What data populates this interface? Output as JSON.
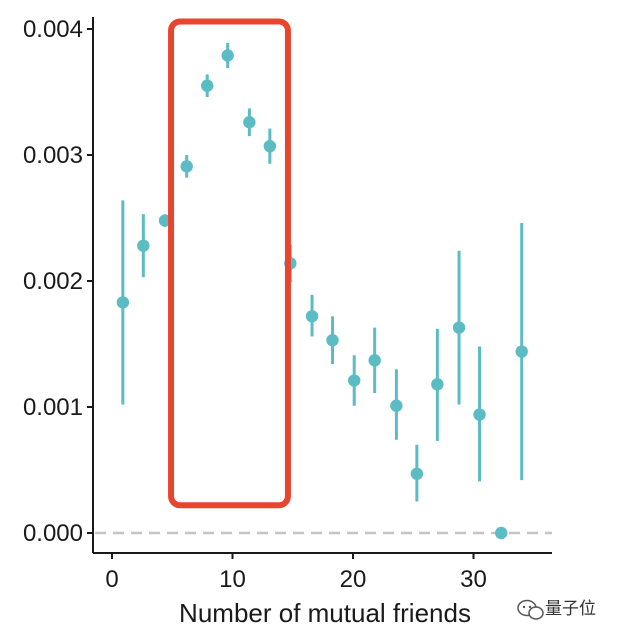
{
  "chart_data": {
    "type": "scatter",
    "xlabel": "Number of mutual friends",
    "ylabel": "",
    "xlim": [
      -1.5,
      36.5
    ],
    "ylim": [
      -1e-05,
      0.00406
    ],
    "x_ticks": [
      0,
      10,
      20,
      30
    ],
    "y_ticks": [
      0.0,
      0.001,
      0.002,
      0.003,
      0.004
    ],
    "y_tick_labels": [
      "0.000",
      "0.001",
      "0.002",
      "0.003",
      "0.004"
    ],
    "reference_line": {
      "y": 0,
      "style": "dashed",
      "color": "#c4c4c4"
    },
    "series": [
      {
        "points": [
          {
            "x": 0.9,
            "y": 0.00183,
            "low": 0.00102,
            "high": 0.00264
          },
          {
            "x": 2.6,
            "y": 0.00228,
            "low": 0.00203,
            "high": 0.00253
          },
          {
            "x": 4.4,
            "y": 0.00248,
            "low": 0.00243,
            "high": 0.00253
          },
          {
            "x": 6.2,
            "y": 0.00291,
            "low": 0.00282,
            "high": 0.003
          },
          {
            "x": 7.9,
            "y": 0.00355,
            "low": 0.00346,
            "high": 0.00364
          },
          {
            "x": 9.6,
            "y": 0.00379,
            "low": 0.00369,
            "high": 0.00389
          },
          {
            "x": 11.4,
            "y": 0.00326,
            "low": 0.00315,
            "high": 0.00337
          },
          {
            "x": 13.1,
            "y": 0.00307,
            "low": 0.00293,
            "high": 0.00321
          },
          {
            "x": 14.8,
            "y": 0.00214,
            "low": 0.00199,
            "high": 0.00229
          },
          {
            "x": 16.6,
            "y": 0.00172,
            "low": 0.00156,
            "high": 0.00189
          },
          {
            "x": 18.3,
            "y": 0.00153,
            "low": 0.00134,
            "high": 0.00172
          },
          {
            "x": 20.1,
            "y": 0.00121,
            "low": 0.00101,
            "high": 0.00141
          },
          {
            "x": 21.8,
            "y": 0.00137,
            "low": 0.00111,
            "high": 0.00163
          },
          {
            "x": 23.6,
            "y": 0.00101,
            "low": 0.00074,
            "high": 0.0013
          },
          {
            "x": 25.3,
            "y": 0.00047,
            "low": 0.00025,
            "high": 0.0007
          },
          {
            "x": 27.0,
            "y": 0.00118,
            "low": 0.00073,
            "high": 0.00162
          },
          {
            "x": 28.8,
            "y": 0.00163,
            "low": 0.00102,
            "high": 0.00224
          },
          {
            "x": 30.5,
            "y": 0.00094,
            "low": 0.00041,
            "high": 0.00148
          },
          {
            "x": 32.3,
            "y": 0.0,
            "low": 0.0,
            "high": 0.0
          },
          {
            "x": 34.0,
            "y": 0.00144,
            "low": 0.00042,
            "high": 0.00246
          }
        ]
      }
    ],
    "annotations": [
      {
        "type": "highlight-box",
        "x_range": [
          4.9,
          14.6
        ],
        "y_range": [
          0.00022,
          0.00406
        ],
        "color": "#e8452f"
      }
    ]
  },
  "colors": {
    "point": "#5bbcc4",
    "errorbar": "#5bbcc4",
    "axis": "#1a1a1a",
    "highlight": "#e8452f",
    "reference": "#c4c4c4"
  },
  "watermark": {
    "icon": "wechat-logo-icon",
    "text": "量子位"
  }
}
